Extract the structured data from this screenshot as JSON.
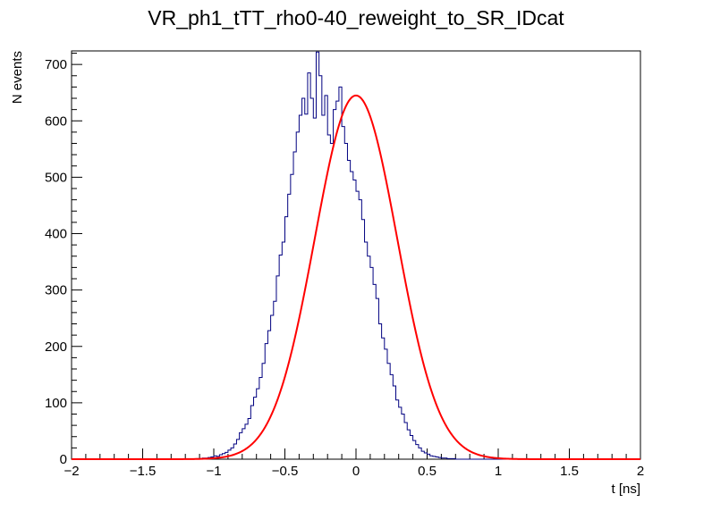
{
  "chart_data": {
    "type": "histogram",
    "title": "VR_ph1_tTT_rho0-40_reweight_to_SR_IDcat",
    "xlabel": "t [ns]",
    "ylabel": "N events",
    "xlim": [
      -2,
      2
    ],
    "ylim": [
      0,
      724
    ],
    "xticks": [
      "−2",
      "−1.5",
      "−1",
      "−0.5",
      "0",
      "0.5",
      "1",
      "1.5",
      "2"
    ],
    "yticks": [
      "0",
      "100",
      "200",
      "300",
      "400",
      "500",
      "600",
      "700"
    ],
    "bin_width": 0.02,
    "series": [
      {
        "name": "histogram",
        "color": "#000080",
        "bin_edges_start": -2.0,
        "values": [
          0,
          0,
          0,
          0,
          0,
          0,
          0,
          0,
          0,
          0,
          0,
          0,
          0,
          0,
          0,
          0,
          0,
          0,
          0,
          0,
          0,
          0,
          0,
          0,
          0,
          0,
          0,
          0,
          0,
          0,
          0,
          0,
          0,
          0,
          0,
          0,
          0,
          0,
          0,
          0,
          0,
          0,
          0,
          0,
          1,
          1,
          2,
          2,
          3,
          4,
          6,
          5,
          8,
          10,
          12,
          16,
          20,
          27,
          35,
          47,
          54,
          62,
          72,
          95,
          110,
          125,
          145,
          170,
          205,
          228,
          255,
          280,
          325,
          362,
          385,
          430,
          470,
          505,
          545,
          580,
          610,
          640,
          612,
          685,
          640,
          605,
          722,
          680,
          610,
          645,
          575,
          560,
          620,
          635,
          660,
          590,
          560,
          530,
          510,
          495,
          475,
          460,
          425,
          385,
          360,
          340,
          310,
          285,
          240,
          215,
          195,
          170,
          150,
          130,
          105,
          92,
          80,
          65,
          52,
          42,
          33,
          26,
          20,
          14,
          11,
          9,
          6,
          5,
          4,
          3,
          2,
          2,
          1,
          1,
          1,
          0,
          0,
          0,
          0,
          0,
          0,
          0,
          0,
          0,
          0,
          0,
          0,
          0,
          0,
          0,
          0,
          0,
          0,
          0,
          0,
          0,
          0,
          0,
          0,
          0,
          0,
          0,
          0,
          0,
          0,
          0,
          0,
          0,
          0,
          0,
          0,
          0,
          0,
          0,
          0,
          0,
          0,
          0,
          0,
          0,
          0,
          0,
          0,
          0,
          0,
          0,
          0,
          0,
          0,
          0,
          0,
          0,
          0
        ]
      },
      {
        "name": "gaussian fit",
        "color": "#ff0000",
        "function": "gaussian",
        "amplitude": 645,
        "mean": 0.0,
        "sigma": 0.29
      }
    ]
  }
}
